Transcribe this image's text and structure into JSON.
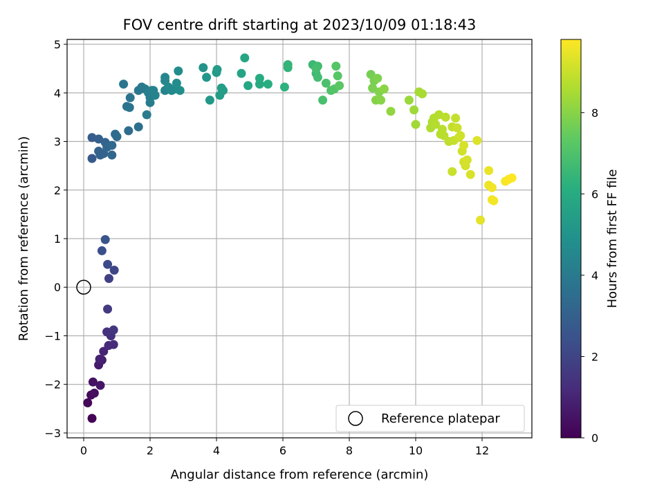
{
  "chart_data": {
    "type": "scatter",
    "title": "FOV centre drift starting at 2023/10/09 01:18:43",
    "xlabel": "Angular distance from reference (arcmin)",
    "ylabel": "Rotation from reference (arcmin)",
    "xlim": [
      -0.5,
      13.5
    ],
    "ylim": [
      -3.1,
      5.1
    ],
    "xticks": [
      0,
      2,
      4,
      6,
      8,
      10,
      12
    ],
    "yticks": [
      -3,
      -2,
      -1,
      0,
      1,
      2,
      3,
      4,
      5
    ],
    "grid": true,
    "legend": {
      "location": "lower-right",
      "entries": [
        "Reference platepar"
      ]
    },
    "reference_point": {
      "x": 0,
      "y": 0
    },
    "colorbar": {
      "label": "Hours from first FF file",
      "min": 0,
      "max": 9.8,
      "ticks": [
        0,
        2,
        4,
        6,
        8
      ],
      "colormap": "viridis"
    },
    "points": [
      [
        0.25,
        -2.7,
        0.05
      ],
      [
        0.12,
        -2.38,
        0.15
      ],
      [
        0.22,
        -2.22,
        0.25
      ],
      [
        0.32,
        -2.18,
        0.35
      ],
      [
        0.28,
        -1.95,
        0.45
      ],
      [
        0.5,
        -2.02,
        0.55
      ],
      [
        0.45,
        -1.6,
        0.7
      ],
      [
        0.55,
        -1.5,
        0.8
      ],
      [
        0.48,
        -1.48,
        0.9
      ],
      [
        0.6,
        -1.32,
        1.0
      ],
      [
        0.75,
        -1.2,
        1.1
      ],
      [
        0.9,
        -1.18,
        1.2
      ],
      [
        0.82,
        -1.0,
        1.3
      ],
      [
        0.7,
        -0.92,
        1.4
      ],
      [
        0.9,
        -0.88,
        1.5
      ],
      [
        0.72,
        -0.45,
        1.7
      ],
      [
        0.76,
        0.18,
        1.9
      ],
      [
        0.92,
        0.35,
        2.05
      ],
      [
        0.72,
        0.47,
        2.2
      ],
      [
        0.55,
        0.75,
        2.4
      ],
      [
        0.65,
        0.98,
        2.55
      ],
      [
        0.25,
        2.65,
        2.75
      ],
      [
        0.25,
        3.08,
        2.85
      ],
      [
        0.45,
        3.05,
        2.95
      ],
      [
        0.5,
        2.72,
        3.0
      ],
      [
        0.45,
        2.8,
        3.05
      ],
      [
        0.6,
        2.75,
        3.1
      ],
      [
        0.65,
        2.98,
        3.15
      ],
      [
        0.7,
        2.88,
        3.2
      ],
      [
        0.85,
        2.72,
        3.25
      ],
      [
        0.85,
        2.92,
        3.3
      ],
      [
        0.95,
        3.15,
        3.35
      ],
      [
        1.0,
        3.1,
        3.4
      ],
      [
        1.35,
        3.22,
        3.5
      ],
      [
        1.65,
        3.3,
        3.6
      ],
      [
        1.3,
        3.72,
        3.7
      ],
      [
        1.38,
        3.7,
        3.75
      ],
      [
        1.4,
        3.9,
        3.8
      ],
      [
        1.2,
        4.18,
        3.85
      ],
      [
        1.65,
        4.05,
        3.9
      ],
      [
        1.75,
        4.12,
        3.95
      ],
      [
        1.85,
        4.08,
        4.0
      ],
      [
        1.9,
        3.55,
        4.05
      ],
      [
        2.0,
        3.8,
        4.1
      ],
      [
        2.0,
        3.9,
        4.15
      ],
      [
        1.95,
        4.0,
        4.2
      ],
      [
        2.05,
        4.05,
        4.25
      ],
      [
        2.15,
        3.95,
        4.3
      ],
      [
        2.1,
        4.05,
        4.35
      ],
      [
        2.45,
        4.05,
        4.4
      ],
      [
        2.45,
        4.25,
        4.45
      ],
      [
        2.45,
        4.32,
        4.5
      ],
      [
        2.55,
        4.12,
        4.55
      ],
      [
        2.65,
        4.05,
        4.6
      ],
      [
        2.75,
        4.08,
        4.65
      ],
      [
        2.8,
        4.2,
        4.7
      ],
      [
        2.85,
        4.45,
        4.75
      ],
      [
        2.9,
        4.05,
        4.8
      ],
      [
        3.6,
        4.52,
        5.0
      ],
      [
        3.7,
        4.32,
        5.1
      ],
      [
        3.8,
        3.85,
        5.2
      ],
      [
        4.0,
        4.42,
        5.3
      ],
      [
        4.02,
        4.48,
        5.35
      ],
      [
        4.1,
        3.95,
        5.4
      ],
      [
        4.15,
        4.1,
        5.45
      ],
      [
        4.2,
        4.05,
        5.5
      ],
      [
        4.75,
        4.4,
        5.65
      ],
      [
        4.85,
        4.72,
        5.75
      ],
      [
        4.95,
        4.15,
        5.85
      ],
      [
        5.3,
        4.18,
        5.95
      ],
      [
        5.3,
        4.3,
        6.0
      ],
      [
        5.55,
        4.18,
        6.1
      ],
      [
        6.05,
        4.12,
        6.25
      ],
      [
        6.15,
        4.52,
        6.35
      ],
      [
        6.15,
        4.58,
        6.4
      ],
      [
        6.9,
        4.58,
        6.6
      ],
      [
        7.0,
        4.4,
        6.65
      ],
      [
        7.05,
        4.55,
        6.7
      ],
      [
        7.05,
        4.32,
        6.75
      ],
      [
        7.0,
        4.5,
        6.8
      ],
      [
        7.2,
        3.85,
        6.9
      ],
      [
        7.3,
        4.2,
        6.95
      ],
      [
        7.45,
        4.05,
        7.05
      ],
      [
        7.55,
        4.08,
        7.1
      ],
      [
        7.6,
        4.55,
        7.15
      ],
      [
        7.65,
        4.35,
        7.2
      ],
      [
        7.7,
        4.15,
        7.25
      ],
      [
        8.65,
        4.38,
        7.7
      ],
      [
        8.75,
        4.25,
        7.75
      ],
      [
        8.7,
        4.1,
        7.8
      ],
      [
        8.85,
        4.3,
        7.85
      ],
      [
        8.9,
        4.02,
        7.9
      ],
      [
        8.8,
        3.85,
        7.95
      ],
      [
        8.95,
        3.85,
        8.0
      ],
      [
        9.05,
        4.08,
        8.05
      ],
      [
        9.25,
        3.62,
        8.15
      ],
      [
        9.8,
        3.85,
        8.3
      ],
      [
        9.95,
        3.65,
        8.35
      ],
      [
        10.0,
        3.35,
        8.4
      ],
      [
        10.1,
        4.02,
        8.45
      ],
      [
        10.2,
        3.98,
        8.5
      ],
      [
        10.45,
        3.28,
        8.6
      ],
      [
        10.5,
        3.4,
        8.62
      ],
      [
        10.55,
        3.48,
        8.65
      ],
      [
        10.6,
        3.35,
        8.68
      ],
      [
        10.7,
        3.55,
        8.7
      ],
      [
        10.75,
        3.15,
        8.72
      ],
      [
        10.8,
        3.25,
        8.75
      ],
      [
        10.85,
        3.12,
        8.78
      ],
      [
        10.9,
        3.5,
        8.8
      ],
      [
        11.0,
        3.0,
        8.85
      ],
      [
        11.1,
        3.3,
        8.9
      ],
      [
        11.15,
        3.02,
        8.92
      ],
      [
        11.2,
        3.48,
        8.95
      ],
      [
        11.1,
        2.38,
        9.0
      ],
      [
        11.25,
        3.28,
        9.02
      ],
      [
        11.3,
        3.08,
        9.05
      ],
      [
        11.35,
        3.12,
        9.08
      ],
      [
        11.4,
        2.8,
        9.1
      ],
      [
        11.45,
        2.58,
        9.12
      ],
      [
        11.5,
        2.5,
        9.15
      ],
      [
        11.55,
        2.62,
        9.18
      ],
      [
        11.45,
        2.92,
        9.2
      ],
      [
        11.65,
        2.32,
        9.25
      ],
      [
        11.85,
        3.02,
        9.3
      ],
      [
        11.95,
        1.38,
        9.4
      ],
      [
        12.2,
        2.4,
        9.5
      ],
      [
        12.2,
        2.1,
        9.55
      ],
      [
        12.3,
        2.05,
        9.6
      ],
      [
        12.3,
        1.8,
        9.62
      ],
      [
        12.35,
        1.78,
        9.65
      ],
      [
        12.7,
        2.18,
        9.7
      ],
      [
        12.8,
        2.22,
        9.75
      ],
      [
        12.9,
        2.25,
        9.8
      ]
    ]
  }
}
